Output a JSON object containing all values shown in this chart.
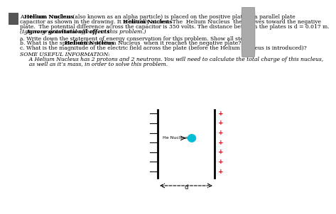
{
  "bg_color": "#ffffff",
  "scrollbar_color": "#cccccc",
  "nucleus_color": "#00bcd4",
  "plus_color": "#cc0000",
  "plate_color": "#000000",
  "fontsize": 5.5,
  "line1": "A  Helium Nucleus (also known as an alpha particle) is placed on the positive plate of a parallel plate",
  "line2": "capacitor as shown in the drawing. It is initially at rest. The  Helium Nucleus  then moves toward the negative",
  "line3": "plate.  The potential difference across the capacitor is 350 volts. The distance between the plates is d = 0.017 m.",
  "line4": "(Ignore gravitational effects  in this problem.)",
  "qa1": "a. Write down the statement of energy conservation for this problem. Show all steps.",
  "qa2": "b. What is the speed of the  Helium Nucleus  when it reaches the negative plate?",
  "qa3": "c. What is the magnitude of the electric field across the plate (before the Helium Nucleus is introduced)?",
  "info_title": "SOME USEFUL INFORMATION:",
  "info1": "  A Helium Nucleus has 2 protons and 2 neutrons. You will need to calculate the total charge of this nucleus,",
  "info2": "  as well as it’s mass, in order to solve this problem."
}
